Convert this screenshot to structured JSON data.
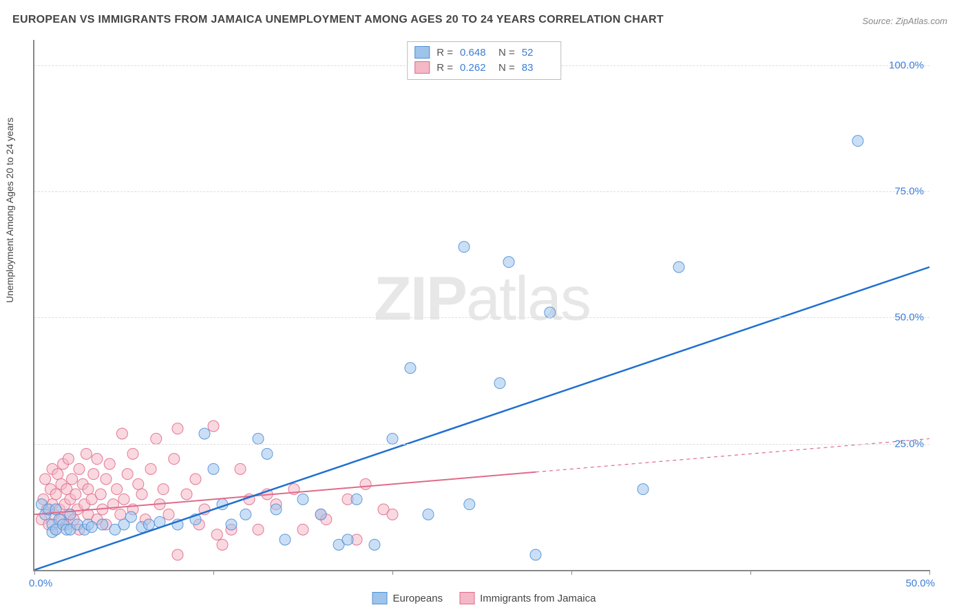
{
  "title": "EUROPEAN VS IMMIGRANTS FROM JAMAICA UNEMPLOYMENT AMONG AGES 20 TO 24 YEARS CORRELATION CHART",
  "source": "Source: ZipAtlas.com",
  "ylabel": "Unemployment Among Ages 20 to 24 years",
  "watermark_a": "ZIP",
  "watermark_b": "atlas",
  "chart": {
    "type": "scatter",
    "xlim": [
      0,
      50
    ],
    "ylim": [
      0,
      105
    ],
    "x_ticks": [
      0,
      10,
      20,
      30,
      40,
      50
    ],
    "y_ticks": [
      25,
      50,
      75,
      100
    ],
    "x_tick_labels": {
      "0": "0.0%",
      "50": "50.0%"
    },
    "y_tick_labels": {
      "25": "25.0%",
      "50": "50.0%",
      "75": "75.0%",
      "100": "100.0%"
    },
    "grid_color": "#dddddd",
    "axis_color": "#888888",
    "tick_label_color": "#3b7dd8",
    "background": "#ffffff",
    "marker_radius": 8,
    "marker_opacity": 0.55,
    "marker_stroke_opacity": 0.9
  },
  "series": {
    "europeans": {
      "label": "Europeans",
      "fill": "#9ec4ec",
      "stroke": "#4f8fd6",
      "line_color": "#1f6fd0",
      "line_width": 2.5,
      "stats": {
        "R": "0.648",
        "N": "52"
      },
      "trend": {
        "x1": 0,
        "y1": 0,
        "x2": 50,
        "y2": 60,
        "dash": false,
        "extend_dash_from_x": null
      },
      "points": [
        [
          0.4,
          13
        ],
        [
          0.6,
          11
        ],
        [
          0.8,
          12
        ],
        [
          1.0,
          9
        ],
        [
          1.0,
          7.5
        ],
        [
          1.2,
          12
        ],
        [
          1.2,
          8
        ],
        [
          1.4,
          10
        ],
        [
          1.6,
          9
        ],
        [
          1.8,
          8
        ],
        [
          2.0,
          8
        ],
        [
          2.0,
          11
        ],
        [
          2.4,
          9
        ],
        [
          2.8,
          8
        ],
        [
          3.0,
          9
        ],
        [
          3.2,
          8.5
        ],
        [
          3.8,
          9
        ],
        [
          4.5,
          8
        ],
        [
          5.0,
          9
        ],
        [
          5.4,
          10.5
        ],
        [
          6.0,
          8.5
        ],
        [
          6.4,
          9
        ],
        [
          7.0,
          9.5
        ],
        [
          8.0,
          9
        ],
        [
          9.0,
          10
        ],
        [
          9.5,
          27
        ],
        [
          10,
          20
        ],
        [
          10.5,
          13
        ],
        [
          11,
          9
        ],
        [
          11.8,
          11
        ],
        [
          12.5,
          26
        ],
        [
          13,
          23
        ],
        [
          13.5,
          12
        ],
        [
          14,
          6
        ],
        [
          15,
          14
        ],
        [
          16,
          11
        ],
        [
          17,
          5
        ],
        [
          17.5,
          6
        ],
        [
          18,
          14
        ],
        [
          19,
          5
        ],
        [
          20,
          26
        ],
        [
          21,
          40
        ],
        [
          22,
          11
        ],
        [
          24,
          64
        ],
        [
          24.3,
          13
        ],
        [
          26,
          37
        ],
        [
          26.5,
          61
        ],
        [
          28,
          3
        ],
        [
          28.8,
          51
        ],
        [
          34,
          16
        ],
        [
          36,
          60
        ],
        [
          46,
          85
        ]
      ]
    },
    "jamaica": {
      "label": "Immigrants from Jamaica",
      "fill": "#f4b8c6",
      "stroke": "#e06a8a",
      "line_color": "#e06a8a",
      "line_width": 2,
      "stats": {
        "R": "0.262",
        "N": "83"
      },
      "trend": {
        "x1": 0,
        "y1": 11,
        "x2": 50,
        "y2": 26,
        "dash": false,
        "extend_dash_from_x": 28
      },
      "points": [
        [
          0.4,
          10
        ],
        [
          0.5,
          14
        ],
        [
          0.6,
          18
        ],
        [
          0.7,
          12
        ],
        [
          0.8,
          9
        ],
        [
          0.9,
          16
        ],
        [
          1.0,
          13
        ],
        [
          1.0,
          20
        ],
        [
          1.1,
          11
        ],
        [
          1.2,
          15
        ],
        [
          1.2,
          8
        ],
        [
          1.3,
          19
        ],
        [
          1.4,
          12
        ],
        [
          1.5,
          17
        ],
        [
          1.5,
          10
        ],
        [
          1.6,
          21
        ],
        [
          1.7,
          13
        ],
        [
          1.8,
          16
        ],
        [
          1.8,
          9
        ],
        [
          1.9,
          22
        ],
        [
          2.0,
          14
        ],
        [
          2.0,
          11
        ],
        [
          2.1,
          18
        ],
        [
          2.2,
          10
        ],
        [
          2.3,
          15
        ],
        [
          2.4,
          12
        ],
        [
          2.5,
          20
        ],
        [
          2.5,
          8
        ],
        [
          2.7,
          17
        ],
        [
          2.8,
          13
        ],
        [
          2.9,
          23
        ],
        [
          3.0,
          11
        ],
        [
          3.0,
          16
        ],
        [
          3.2,
          14
        ],
        [
          3.3,
          19
        ],
        [
          3.5,
          10
        ],
        [
          3.5,
          22
        ],
        [
          3.7,
          15
        ],
        [
          3.8,
          12
        ],
        [
          4.0,
          18
        ],
        [
          4.0,
          9
        ],
        [
          4.2,
          21
        ],
        [
          4.4,
          13
        ],
        [
          4.6,
          16
        ],
        [
          4.8,
          11
        ],
        [
          4.9,
          27
        ],
        [
          5.0,
          14
        ],
        [
          5.2,
          19
        ],
        [
          5.5,
          23
        ],
        [
          5.5,
          12
        ],
        [
          5.8,
          17
        ],
        [
          6.0,
          15
        ],
        [
          6.2,
          10
        ],
        [
          6.5,
          20
        ],
        [
          6.8,
          26
        ],
        [
          7.0,
          13
        ],
        [
          7.2,
          16
        ],
        [
          7.5,
          11
        ],
        [
          7.8,
          22
        ],
        [
          8.0,
          3
        ],
        [
          8,
          28
        ],
        [
          8.5,
          15
        ],
        [
          9,
          18
        ],
        [
          9.2,
          9
        ],
        [
          9.5,
          12
        ],
        [
          10,
          28.5
        ],
        [
          10.2,
          7
        ],
        [
          10.5,
          5
        ],
        [
          11,
          8
        ],
        [
          11.5,
          20
        ],
        [
          12,
          14
        ],
        [
          12.5,
          8
        ],
        [
          13,
          15
        ],
        [
          13.5,
          13
        ],
        [
          14.5,
          16
        ],
        [
          15,
          8
        ],
        [
          16,
          11
        ],
        [
          16.3,
          10
        ],
        [
          17.5,
          14
        ],
        [
          18,
          6
        ],
        [
          18.5,
          17
        ],
        [
          19.5,
          12
        ],
        [
          20,
          11
        ]
      ]
    }
  },
  "stats_labels": {
    "R": "R =",
    "N": "N ="
  },
  "legend": {
    "items": [
      {
        "key": "europeans",
        "label": "Europeans"
      },
      {
        "key": "jamaica",
        "label": "Immigrants from Jamaica"
      }
    ]
  }
}
